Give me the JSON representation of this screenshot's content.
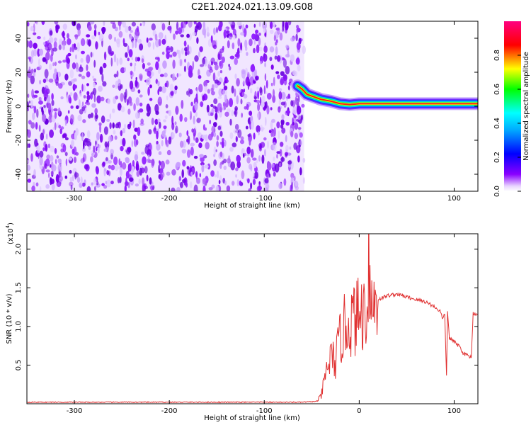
{
  "title": "C2E1.2024.021.13.09.G08",
  "chart_data": [
    {
      "type": "heatmap",
      "xlabel": "Height of straight line (km)",
      "ylabel": "Frequency (Hz)",
      "xlim": [
        -350,
        125
      ],
      "ylim": [
        -50,
        50
      ],
      "x_ticks": [
        -300,
        -200,
        -100,
        0,
        100
      ],
      "y_ticks": [
        -40,
        -20,
        0,
        20,
        40
      ],
      "colorbar": {
        "label": "Normalized spectral amplitude",
        "range": [
          0,
          1
        ],
        "ticks": [
          "0.0",
          "0.2",
          "0.4",
          "0.6",
          "0.8"
        ],
        "colors": [
          "#ffffff",
          "#8a00ff",
          "#0000ff",
          "#00ffff",
          "#00ff00",
          "#ffff00",
          "#ff0000",
          "#ff0080"
        ]
      },
      "noise_region_x": [
        -350,
        -58
      ],
      "ridge": [
        {
          "x": -65,
          "y": 12
        },
        {
          "x": -60,
          "y": 10
        },
        {
          "x": -55,
          "y": 7
        },
        {
          "x": -50,
          "y": 6
        },
        {
          "x": -40,
          "y": 4
        },
        {
          "x": -30,
          "y": 3
        },
        {
          "x": -20,
          "y": 1.5
        },
        {
          "x": -10,
          "y": 1
        },
        {
          "x": 0,
          "y": 1.5
        },
        {
          "x": 20,
          "y": 1.5
        },
        {
          "x": 60,
          "y": 1.5
        },
        {
          "x": 100,
          "y": 1.5
        },
        {
          "x": 125,
          "y": 1.5
        }
      ]
    },
    {
      "type": "line",
      "xlabel": "Height of straight line (km)",
      "ylabel": "SNR (10 * v/v)",
      "y_multiplier": "(x10",
      "y_exponent": "4",
      "y_multiplier_close": ")",
      "xlim": [
        -350,
        125
      ],
      "ylim": [
        0,
        2.2
      ],
      "x_ticks": [
        -300,
        -200,
        -100,
        0,
        100
      ],
      "y_ticks": [
        "0.5",
        "1.0",
        "1.5",
        "2.0"
      ],
      "line_color": "#e03030",
      "series": [
        {
          "x": [
            -350,
            -300,
            -250,
            -200,
            -150,
            -100,
            -60,
            -45,
            -40,
            -35,
            -30,
            -25,
            -20,
            -15,
            -10,
            -5,
            0,
            5,
            9,
            10,
            12,
            15,
            20,
            30,
            40,
            50,
            60,
            70,
            80,
            85,
            88,
            90,
            92,
            93,
            95,
            100,
            105,
            110,
            115,
            118,
            120,
            125
          ],
          "y": [
            0.02,
            0.02,
            0.02,
            0.02,
            0.02,
            0.02,
            0.02,
            0.03,
            0.1,
            0.4,
            0.6,
            0.55,
            0.85,
            1.0,
            1.05,
            1.1,
            1.15,
            1.2,
            1.25,
            2.15,
            1.25,
            1.3,
            1.35,
            1.4,
            1.42,
            1.38,
            1.35,
            1.32,
            1.25,
            1.2,
            1.1,
            1.15,
            0.35,
            1.2,
            0.85,
            0.8,
            0.75,
            0.65,
            0.62,
            0.6,
            1.17,
            1.16
          ]
        }
      ]
    }
  ]
}
